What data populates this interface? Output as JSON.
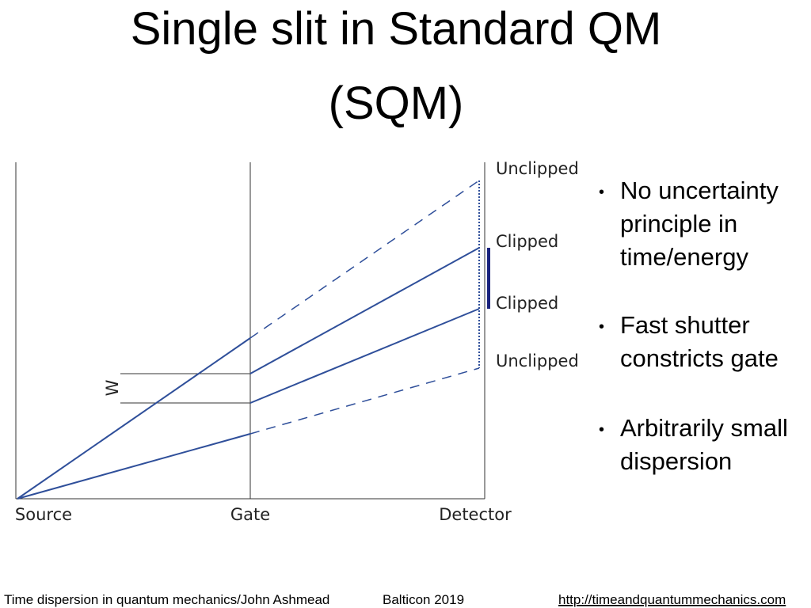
{
  "title": {
    "lines": [
      "Single slit in Standard QM",
      "(SQM)"
    ]
  },
  "diagram": {
    "width_label": "W",
    "range_labels": [
      "Unclipped",
      "Clipped",
      "Clipped",
      "Unclipped"
    ],
    "axis_labels": [
      "Source",
      "Gate",
      "Detector"
    ]
  },
  "bullets": [
    {
      "lines": [
        "No uncertainty",
        "principle in",
        "time/energy"
      ]
    },
    {
      "lines": [
        "Fast shutter",
        "constricts gate"
      ]
    },
    {
      "lines": [
        "Arbitrarily small",
        "dispersion"
      ]
    }
  ],
  "footer": {
    "left": "Time dispersion in quantum mechanics/John Ashmead",
    "center": "Balticon 2019",
    "right": "http://timeandquantummechanics.com"
  }
}
